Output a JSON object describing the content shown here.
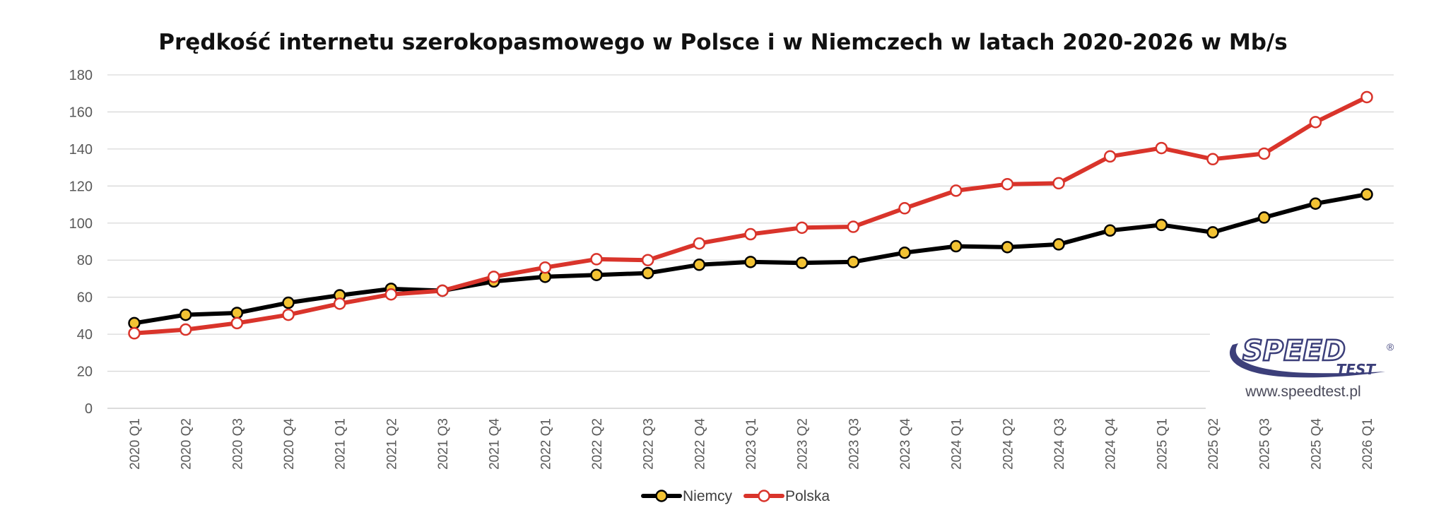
{
  "chart_data": {
    "type": "line",
    "title": "Prędkość internetu szerokopasmowego w Polsce i w Niemczech w latach 2020-2026 w Mb/s",
    "xlabel": "",
    "ylabel": "",
    "ylim": [
      0,
      180
    ],
    "yticks": [
      "0",
      "20",
      "40",
      "60",
      "80",
      "100",
      "120",
      "140",
      "160",
      "180"
    ],
    "grid": true,
    "legend_position": "bottom",
    "categories": [
      "2020 Q1",
      "2020 Q2",
      "2020 Q3",
      "2020 Q4",
      "2021 Q1",
      "2021 Q2",
      "2021 Q3",
      "2021 Q4",
      "2022 Q1",
      "2022 Q2",
      "2022 Q3",
      "2022 Q4",
      "2023 Q1",
      "2023 Q2",
      "2023 Q3",
      "2023 Q4",
      "2024 Q1",
      "2024 Q2",
      "2024 Q3",
      "2024 Q4",
      "2025 Q1",
      "2025 Q2",
      "2025 Q3",
      "2025 Q4",
      "2026 Q1"
    ],
    "series": [
      {
        "name": "Niemcy",
        "color": "#000000",
        "marker_fill": "#f2c233",
        "values": [
          46,
          50.5,
          51.5,
          57,
          61,
          64.5,
          63.5,
          68.5,
          71,
          72,
          73,
          77.5,
          79,
          78.5,
          79,
          84,
          87.5,
          87,
          88.5,
          96,
          99,
          95,
          103,
          110.5,
          115.5
        ]
      },
      {
        "name": "Polska",
        "color": "#d9342b",
        "marker_fill": "#ffffff",
        "values": [
          40.5,
          42.5,
          46,
          50.5,
          56.5,
          61.5,
          63.5,
          71,
          76,
          80.5,
          80,
          89,
          94,
          97.5,
          98,
          108,
          117.5,
          121,
          121.5,
          136,
          140.5,
          134.5,
          137.5,
          154.5,
          168
        ]
      }
    ]
  },
  "logo": {
    "word_speed": "SPEED",
    "word_test": "TEST",
    "registered": "®",
    "url": "www.speedtest.pl",
    "color": "#3c3f7a"
  }
}
